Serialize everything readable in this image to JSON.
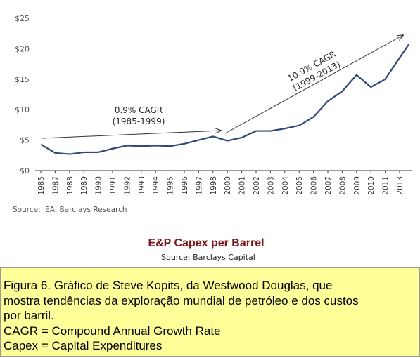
{
  "chart_data": {
    "type": "line",
    "categories": [
      "1985",
      "1987",
      "1988",
      "1989",
      "1990",
      "1991",
      "1992",
      "1993",
      "1994",
      "1995",
      "1996",
      "1997",
      "1998",
      "2000",
      "2001",
      "2002",
      "2003",
      "2004",
      "2005",
      "2006",
      "2007",
      "2008",
      "2009",
      "2010",
      "2011",
      "2013",
      null
    ],
    "values": [
      4.3,
      2.9,
      2.7,
      3.0,
      3.0,
      3.6,
      4.1,
      4.0,
      4.1,
      4.0,
      4.4,
      5.0,
      5.6,
      4.9,
      5.4,
      6.5,
      6.5,
      6.9,
      7.4,
      8.8,
      11.4,
      13.0,
      15.7,
      13.7,
      15.0,
      18.5,
      20.7
    ],
    "color": "#2e4a7a",
    "ylim": [
      0,
      25
    ],
    "yticks": [
      {
        "value": 0,
        "label": "$0"
      },
      {
        "value": 5,
        "label": "$5"
      },
      {
        "value": 10,
        "label": "$10"
      },
      {
        "value": 15,
        "label": "$15"
      },
      {
        "value": 20,
        "label": "$20"
      },
      {
        "value": 25,
        "label": "$25"
      }
    ],
    "annotations": [
      "0.9% CAGR",
      "(1985-1999)",
      "10.9% CAGR",
      "(1999-2013)"
    ],
    "source": "Source: IEA, Barclays Research",
    "title": "E&P Capex per Barrel",
    "subtitle": "Source: Barclays Capital"
  },
  "caption": [
    "Figura 6.  Gráfico de Steve Kopits, da Westwood Douglas, que",
    "mostra tendências da exploração mundial de petróleo e dos custos",
    "por barril.",
    "CAGR = Compound Annual Growth Rate",
    "Capex = Capital Expenditures"
  ]
}
